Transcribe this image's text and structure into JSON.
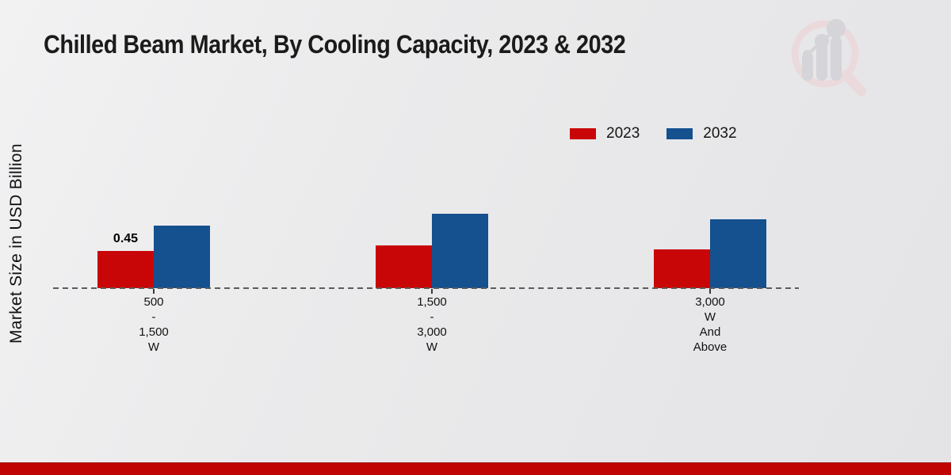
{
  "chart_data": {
    "type": "bar",
    "title": "Chilled Beam Market, By Cooling Capacity, 2023 & 2032",
    "xlabel": "",
    "ylabel": "Market Size in USD Billion",
    "categories": [
      [
        "500",
        "-",
        "1,500",
        "W"
      ],
      [
        "1,500",
        "-",
        "3,000",
        "W"
      ],
      [
        "3,000",
        "W",
        "And",
        "Above"
      ]
    ],
    "categories_flat": [
      "500 - 1,500 W",
      "1,500 - 3,000 W",
      "3,000 W And Above"
    ],
    "series": [
      {
        "name": "2023",
        "color": "#c90607",
        "values": [
          0.45,
          0.52,
          0.47
        ],
        "data_labels": [
          "0.45",
          null,
          null
        ]
      },
      {
        "name": "2032",
        "color": "#15508f",
        "values": [
          0.76,
          0.9,
          0.83
        ],
        "data_labels": [
          null,
          null,
          null
        ]
      }
    ],
    "legend_position": "top-right",
    "baseline_style": "dashed",
    "grid": false,
    "ylim": [
      0,
      1
    ],
    "visible_value_labels": [
      "0.45"
    ]
  },
  "theme": {
    "footer_bar_color": "#c00303",
    "baseline_color": "#5c5c5c",
    "background": "#e9e9ea",
    "title_color": "#1b1b1b",
    "logo_ring_color": "#ecd9db",
    "logo_bars_color": "#d2d2d8"
  },
  "logo": {
    "name": "magnifier-growth-chart-watermark"
  }
}
